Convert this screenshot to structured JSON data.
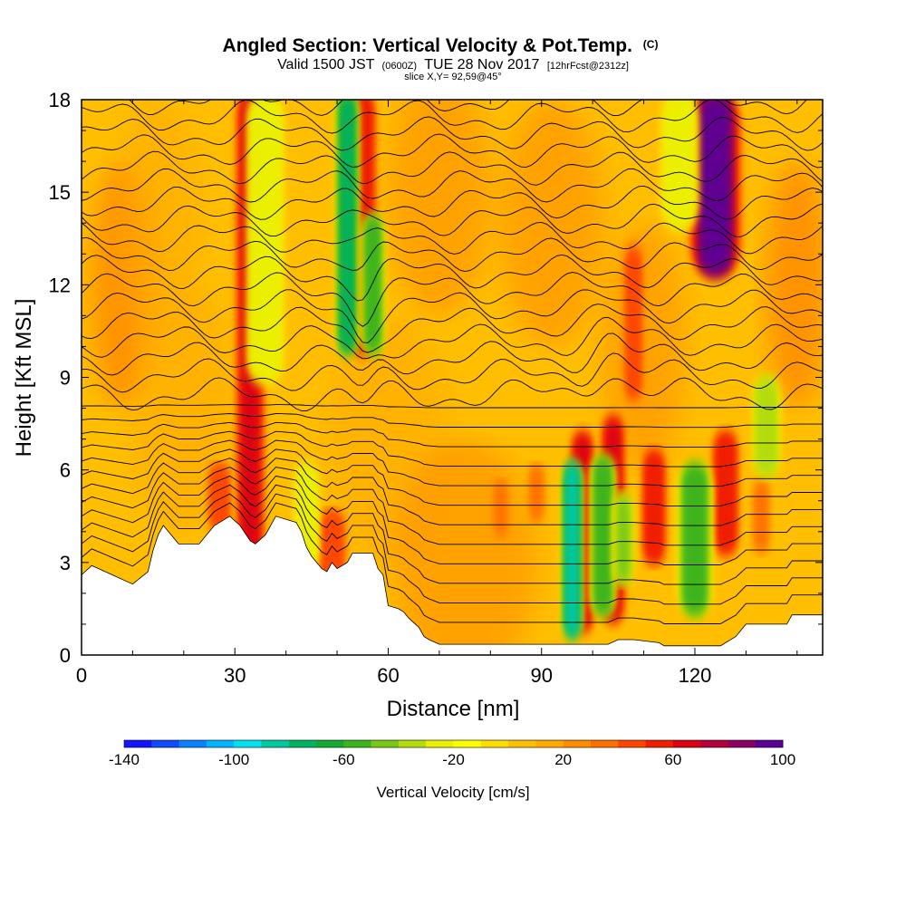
{
  "chart_data": {
    "type": "heatmap",
    "title": "Angled Section: Vertical Velocity & Pot.Temp.",
    "title_mark": "(C)",
    "subtitle_parts": [
      "Valid 1500 JST",
      "(0600Z)",
      "TUE 28 Nov 2017",
      "[12hrFcst@2312z]"
    ],
    "slice_label": "slice X,Y= 92,59@45°",
    "xlabel": "Distance [nm]",
    "ylabel": "Height [Kft MSL]",
    "xlim": [
      0,
      145
    ],
    "ylim": [
      0,
      18
    ],
    "xticks": [
      "0",
      "30",
      "60",
      "90",
      "120"
    ],
    "yticks": [
      "0",
      "3",
      "6",
      "9",
      "12",
      "15",
      "18"
    ],
    "colorbar": {
      "label": "Vertical Velocity [cm/s]",
      "min": -140,
      "max": 100,
      "step": 10,
      "tick_labels": [
        "-140",
        "-100",
        "-60",
        "-20",
        "20",
        "60",
        "100"
      ],
      "colors": [
        "#1414ff",
        "#0f4bff",
        "#0a82ff",
        "#00b4ff",
        "#00e1f0",
        "#00c8a0",
        "#00b464",
        "#14aa32",
        "#3cb41e",
        "#78c814",
        "#b4dc0a",
        "#ebf000",
        "#ffff00",
        "#ffdc00",
        "#ffbe00",
        "#ffaa00",
        "#ff8c00",
        "#ff6e00",
        "#ff4600",
        "#f01e00",
        "#dc0014",
        "#b4003c",
        "#8c0064",
        "#5a0096"
      ]
    },
    "terrain_kft": [
      [
        0,
        2.6
      ],
      [
        2,
        2.9
      ],
      [
        10,
        2.3
      ],
      [
        13,
        2.7
      ],
      [
        14,
        3.4
      ],
      [
        15,
        3.9
      ],
      [
        16,
        4.2
      ],
      [
        19,
        3.6
      ],
      [
        23,
        3.6
      ],
      [
        25,
        4.0
      ],
      [
        26,
        4.2
      ],
      [
        28,
        4.4
      ],
      [
        29,
        4.5
      ],
      [
        31,
        4.2
      ],
      [
        33,
        3.7
      ],
      [
        34,
        3.6
      ],
      [
        36,
        3.9
      ],
      [
        38,
        4.5
      ],
      [
        42,
        4.3
      ],
      [
        43,
        4.0
      ],
      [
        44,
        3.5
      ],
      [
        45,
        3.2
      ],
      [
        47,
        2.8
      ],
      [
        48,
        2.7
      ],
      [
        49,
        3.0
      ],
      [
        50,
        2.8
      ],
      [
        52,
        3.0
      ],
      [
        53,
        3.3
      ],
      [
        57,
        3.3
      ],
      [
        58,
        2.8
      ],
      [
        59,
        2.6
      ],
      [
        60,
        1.6
      ],
      [
        62,
        1.5
      ],
      [
        63,
        1.4
      ],
      [
        64,
        1.2
      ],
      [
        66,
        0.9
      ],
      [
        67,
        0.6
      ],
      [
        68,
        0.5
      ],
      [
        70,
        0.35
      ],
      [
        103,
        0.35
      ],
      [
        105,
        0.5
      ],
      [
        108,
        0.5
      ],
      [
        113,
        0.4
      ],
      [
        114,
        0.3
      ],
      [
        125,
        0.3
      ],
      [
        128,
        0.6
      ],
      [
        130,
        1.0
      ],
      [
        138,
        1.0
      ],
      [
        139,
        1.3
      ],
      [
        145,
        1.3
      ]
    ],
    "updrafts": [
      {
        "x": 33,
        "y0": 2.5,
        "y1": 18,
        "w": 1.2,
        "value": 60
      },
      {
        "x": 55,
        "y0": 10,
        "y1": 18,
        "w": 1.1,
        "value": 55
      },
      {
        "x": 49,
        "y0": 2.5,
        "y1": 4.5,
        "w": 1.2,
        "value": 40
      },
      {
        "x": 98,
        "y0": 1.0,
        "y1": 7.0,
        "w": 1.0,
        "value": 60
      },
      {
        "x": 104,
        "y0": 1.3,
        "y1": 7.5,
        "w": 1.0,
        "value": 60
      },
      {
        "x": 112,
        "y0": 3.2,
        "y1": 6.4,
        "w": 1.0,
        "value": 55
      },
      {
        "x": 126,
        "y0": 3.5,
        "y1": 7.0,
        "w": 1.1,
        "value": 55
      },
      {
        "x": 124,
        "y0": 12.5,
        "y1": 18,
        "w": 2.2,
        "value": 90
      },
      {
        "x": 108,
        "y0": 8.5,
        "y1": 13,
        "w": 0.8,
        "value": 40
      },
      {
        "x": 27,
        "y0": 4.2,
        "y1": 6.0,
        "w": 1.0,
        "value": 40
      },
      {
        "x": 82,
        "y0": 4.0,
        "y1": 5.5,
        "w": 0.7,
        "value": 30
      },
      {
        "x": 89,
        "y0": 4.5,
        "y1": 6.0,
        "w": 0.7,
        "value": 30
      },
      {
        "x": 133,
        "y0": 3.5,
        "y1": 5.5,
        "w": 0.7,
        "value": 30
      }
    ],
    "downdrafts": [
      {
        "x": 52,
        "y0": 10,
        "y1": 18,
        "w": 0.9,
        "value": -80
      },
      {
        "x": 57,
        "y0": 10,
        "y1": 14,
        "w": 0.9,
        "value": -60
      },
      {
        "x": 36,
        "y0": 9,
        "y1": 18,
        "w": 1.5,
        "value": -30
      },
      {
        "x": 96,
        "y0": 0.8,
        "y1": 6.0,
        "w": 0.8,
        "value": -90
      },
      {
        "x": 102,
        "y0": 1.5,
        "y1": 6.2,
        "w": 1.0,
        "value": -60
      },
      {
        "x": 106,
        "y0": 2.5,
        "y1": 5.0,
        "w": 0.8,
        "value": -50
      },
      {
        "x": 120,
        "y0": 1.5,
        "y1": 6.0,
        "w": 1.4,
        "value": -60
      },
      {
        "x": 134,
        "y0": 6.0,
        "y1": 8.8,
        "w": 1.1,
        "value": -40
      },
      {
        "x": 117,
        "y0": 14,
        "y1": 18,
        "w": 1.5,
        "value": -30
      },
      {
        "x": 44,
        "y0": 3.0,
        "y1": 6.0,
        "w": 1.0,
        "value": -30
      }
    ]
  }
}
